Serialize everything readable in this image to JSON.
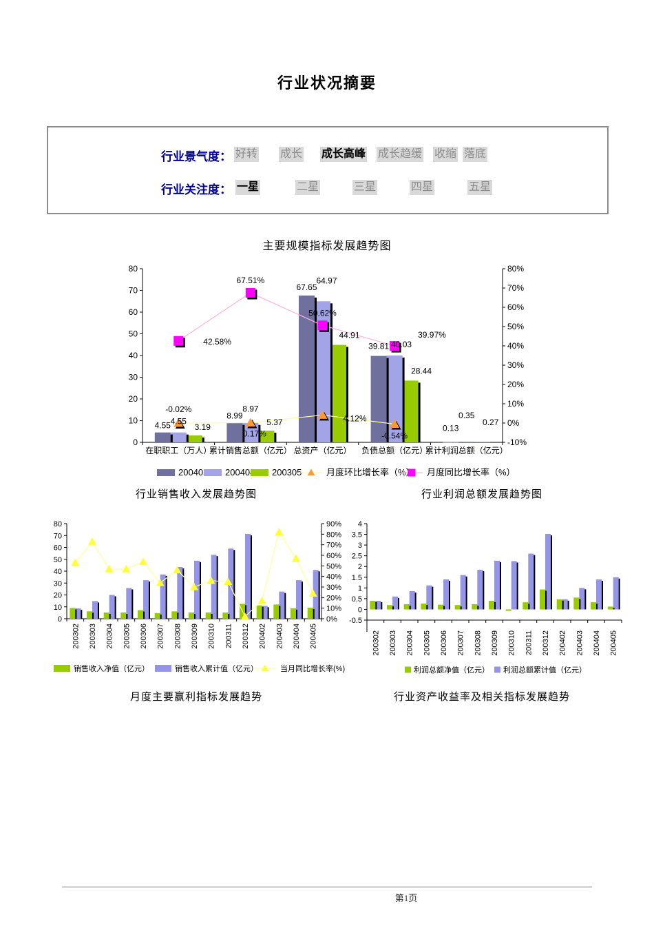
{
  "page": {
    "title": "行业状况摘要",
    "footer_page": "第1页"
  },
  "summary_box": {
    "rows": [
      {
        "label": "行业景气度：",
        "options": [
          "好转",
          "成长",
          "成长高峰",
          "成长趋缓",
          "收缩",
          "落底"
        ],
        "selected": 2
      },
      {
        "label": "行业关注度：",
        "options": [
          "一星",
          "二星",
          "三星",
          "四星",
          "五星"
        ],
        "selected": 0
      }
    ]
  },
  "section_titles": {
    "bottom_left": "月度主要赢利指标发展趋势",
    "bottom_right": "行业资产收益率及相关指标发展趋势"
  },
  "colors": {
    "bar_dark_purple": "#70709E",
    "bar_light_purple": "#A3A3E8",
    "bar_green": "#99CC00",
    "bar_cum_purple": "#9595E8",
    "marker_orange": "#FF9933",
    "marker_magenta": "#FF00FF",
    "marker_yellow": "#FFFF33",
    "line_pale_yellow": "#FFFF99",
    "line_pale_pink": "#FFB3DE",
    "label_navy": "#000099",
    "option_bg": "#D9D9D9"
  },
  "chart_data": [
    {
      "id": "main",
      "type": "bar",
      "title": "主要规模指标发展趋势图",
      "categories": [
        "在职职工（万人）",
        "累计销售总额（亿元）",
        "总资产（亿元）",
        "负债总额（亿元）",
        "累计利润总额（亿元）"
      ],
      "series": [
        {
          "name": "200405",
          "type": "bar",
          "color": "#70709E",
          "values": [
            4.55,
            8.99,
            67.65,
            39.81,
            0.13
          ],
          "labels": [
            "4.55",
            "8.99",
            "67.65",
            "39.81",
            "0.13"
          ]
        },
        {
          "name": "200404",
          "type": "bar",
          "color": "#A3A3E8",
          "values": [
            4.55,
            8.97,
            64.97,
            40.03,
            0.35
          ],
          "labels": [
            "4.55",
            "8.97",
            "64.97",
            "40.03",
            "0.35"
          ]
        },
        {
          "name": "200305",
          "type": "bar",
          "color": "#99CC00",
          "values": [
            3.19,
            5.37,
            44.91,
            28.44,
            0.27
          ],
          "labels": [
            "3.19",
            "5.37",
            "44.91",
            "28.44",
            "0.27"
          ]
        },
        {
          "name": "月度环比增长率（%）",
          "type": "line",
          "marker": "triangle",
          "color": "#FF9933",
          "line_color": "#FFFF99",
          "axis": "right",
          "values": [
            -0.02,
            0.17,
            4.12,
            -0.54,
            null
          ],
          "labels": [
            "-0.02%",
            "0.17%",
            "4.12%",
            "-0.54%",
            null
          ]
        },
        {
          "name": "月度同比增长率（%）",
          "type": "line",
          "marker": "square",
          "color": "#FF00FF",
          "line_color": "#FFB3DE",
          "axis": "right",
          "values": [
            42.58,
            67.51,
            50.62,
            39.97,
            null
          ],
          "labels": [
            "42.58%",
            "67.51%",
            "50.62%",
            "39.97%",
            null
          ]
        }
      ],
      "left_axis": {
        "min": 0,
        "max": 80,
        "step": 10
      },
      "right_axis": {
        "min": -10,
        "max": 80,
        "step": 10,
        "suffix": "%"
      },
      "legend_position": "bottom"
    },
    {
      "id": "sales",
      "type": "bar",
      "title": "行业销售收入发展趋势图",
      "categories": [
        "200302",
        "200303",
        "200304",
        "200305",
        "200306",
        "200307",
        "200308",
        "200309",
        "200310",
        "200311",
        "200312",
        "200402",
        "200403",
        "200404",
        "200405"
      ],
      "series": [
        {
          "name": "销售收入净值（亿元）",
          "type": "bar",
          "color": "#99CC00",
          "values": [
            9,
            6.2,
            5.2,
            5.2,
            7.2,
            4.7,
            6.2,
            5.2,
            5.2,
            5.2,
            12.5,
            11.2,
            12,
            8.8,
            9.3
          ]
        },
        {
          "name": "销售收入累计值（亿元）",
          "type": "bar",
          "color": "#9595E8",
          "values": [
            8.7,
            14.8,
            20,
            25.8,
            32.4,
            37.2,
            43.5,
            48.8,
            53.8,
            59,
            71.3,
            10.8,
            22.8,
            32.4,
            41
          ]
        },
        {
          "name": "当月同比增长率(%)",
          "type": "line",
          "marker": "triangle",
          "color": "#FFFF33",
          "line_color": "#FFFF99",
          "axis": "right",
          "values": [
            53,
            73,
            47,
            47,
            54,
            34,
            46,
            30,
            36,
            35,
            2,
            17,
            82,
            57,
            24
          ]
        }
      ],
      "left_axis": {
        "min": 0,
        "max": 80,
        "step": 10
      },
      "right_axis": {
        "min": 0,
        "max": 90,
        "step": 10,
        "suffix": "%"
      },
      "legend_position": "bottom"
    },
    {
      "id": "profit",
      "type": "bar",
      "title": "行业利润总额发展趋势图",
      "categories": [
        "200302",
        "200303",
        "200304",
        "200305",
        "200306",
        "200307",
        "200308",
        "200309",
        "200310",
        "200311",
        "200312",
        "200402",
        "200403",
        "200404",
        "200405"
      ],
      "series": [
        {
          "name": "利润总额净值（亿元）",
          "type": "bar",
          "color": "#99CC00",
          "values": [
            0.4,
            0.2,
            0.24,
            0.27,
            0.22,
            0.2,
            0.24,
            0.4,
            -0.07,
            0.33,
            0.93,
            0.47,
            0.55,
            0.33,
            0.13
          ]
        },
        {
          "name": "利润总额累计值（亿元）",
          "type": "bar",
          "color": "#9595E8",
          "values": [
            0.4,
            0.6,
            0.85,
            1.12,
            1.4,
            1.6,
            1.85,
            2.27,
            2.25,
            2.6,
            3.52,
            0.47,
            1.0,
            1.4,
            1.5
          ]
        }
      ],
      "left_axis": {
        "min": -0.5,
        "max": 4,
        "step": 0.5
      },
      "legend_position": "bottom"
    }
  ]
}
